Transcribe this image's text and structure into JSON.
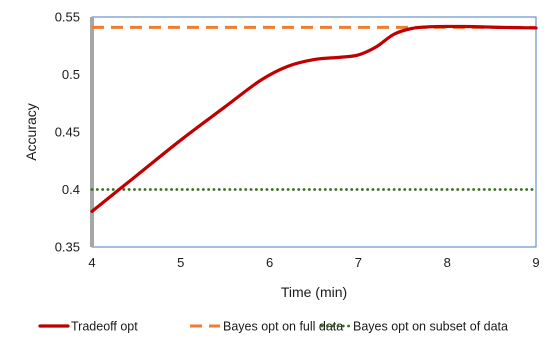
{
  "chart_data": {
    "type": "line",
    "title": "",
    "xlabel": "Time (min)",
    "ylabel": "Accuracy",
    "xlim": [
      4,
      9
    ],
    "ylim": [
      0.35,
      0.55
    ],
    "x_ticks": [
      "4",
      "5",
      "6",
      "7",
      "8",
      "9"
    ],
    "y_ticks": [
      "0.35",
      "0.4",
      "0.45",
      "0.5",
      "0.55"
    ],
    "grid": false,
    "legend_position": "bottom",
    "series": [
      {
        "name": "Tradeoff opt",
        "color": "#c00000",
        "style": "solid",
        "x": [
          4.0,
          4.5,
          5.0,
          5.5,
          5.9,
          6.2,
          6.5,
          6.8,
          7.0,
          7.2,
          7.4,
          7.6,
          7.8,
          8.0,
          8.3,
          8.6,
          9.0
        ],
        "y": [
          0.381,
          0.412,
          0.443,
          0.472,
          0.495,
          0.507,
          0.513,
          0.515,
          0.517,
          0.524,
          0.535,
          0.54,
          0.5415,
          0.5418,
          0.5416,
          0.541,
          0.5405
        ]
      },
      {
        "name": "Bayes opt on full data",
        "color": "#ed7d31",
        "style": "dashed",
        "x": [
          4,
          9
        ],
        "y": [
          0.541,
          0.541
        ]
      },
      {
        "name": "Bayes opt on subset of data",
        "color": "#3b6e22",
        "style": "dotted",
        "x": [
          4,
          9
        ],
        "y": [
          0.4,
          0.4
        ]
      }
    ]
  }
}
